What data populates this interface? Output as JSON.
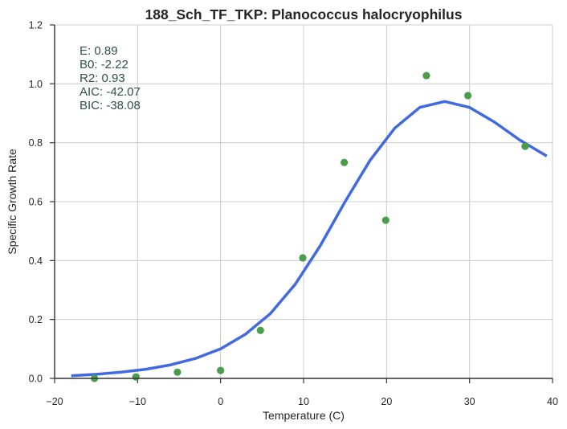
{
  "chart_data": {
    "type": "scatter",
    "title": "188_Sch_TF_TKP: Planococcus halocryophilus",
    "xlabel": "Temperature (C)",
    "ylabel": "Specific Growth Rate",
    "xlim": [
      -20,
      40
    ],
    "ylim": [
      0,
      1.2
    ],
    "xticks": [
      "−20",
      "−10",
      "0",
      "10",
      "20",
      "30",
      "40"
    ],
    "yticks": [
      "0.0",
      "0.2",
      "0.4",
      "0.6",
      "0.8",
      "1.0",
      "1.2"
    ],
    "grid": true,
    "annotations": [
      "E:  0.89",
      "B0:  -2.22",
      "R2:  0.93",
      "AIC: -42.07",
      "BIC: -38.08"
    ],
    "series": [
      {
        "type": "scatter",
        "color": "#4a9e4a",
        "x": [
          -15.2,
          -10.2,
          -5.2,
          0,
          4.8,
          9.9,
          14.9,
          19.9,
          24.8,
          29.8,
          36.7
        ],
        "y": [
          0.0,
          0.005,
          0.021,
          0.027,
          0.163,
          0.409,
          0.733,
          0.537,
          1.028,
          0.96,
          0.788
        ]
      },
      {
        "type": "line",
        "color": "#4169e1",
        "x": [
          -18,
          -15,
          -12,
          -9,
          -6,
          -3,
          0,
          3,
          6,
          9,
          12,
          15,
          18,
          21,
          24,
          27,
          30,
          33,
          36,
          39.3
        ],
        "y": [
          0.009,
          0.014,
          0.021,
          0.031,
          0.046,
          0.068,
          0.1,
          0.15,
          0.22,
          0.32,
          0.45,
          0.6,
          0.74,
          0.85,
          0.92,
          0.94,
          0.92,
          0.87,
          0.81,
          0.755
        ]
      }
    ]
  }
}
